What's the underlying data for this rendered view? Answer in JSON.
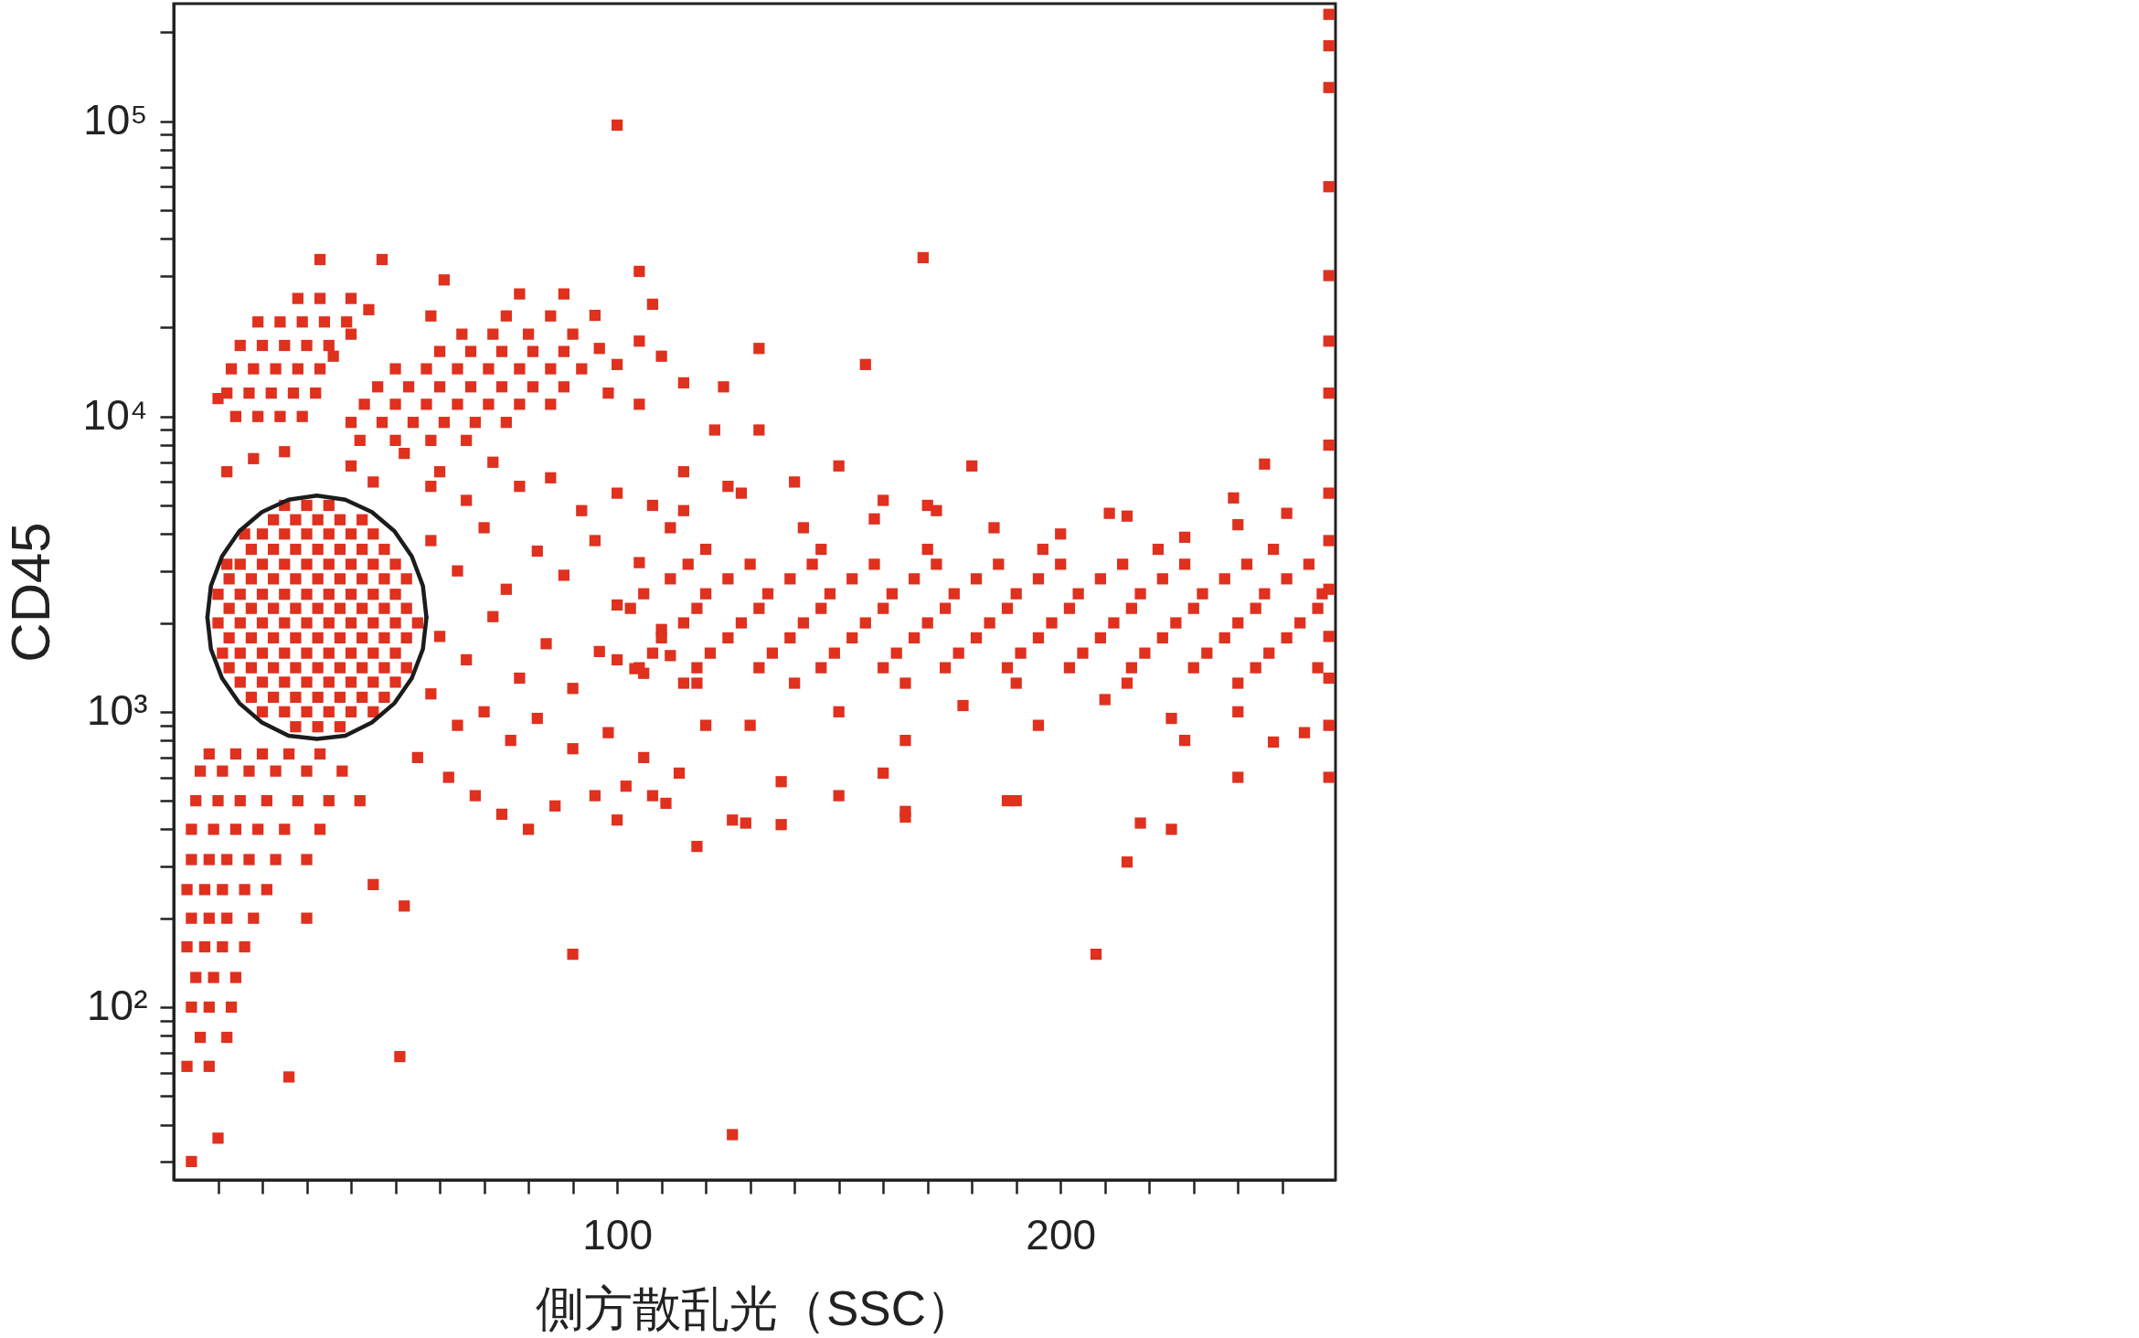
{
  "chart_data": {
    "type": "scatter",
    "xlabel": "側方散乱光（SSC）",
    "ylabel": "CD45",
    "log": "y",
    "marker": "square",
    "xlim": [
      0,
      262
    ],
    "ylim": [
      26,
      250000
    ],
    "xticks": [
      {
        "value": 10,
        "label": null
      },
      {
        "value": 20,
        "label": null
      },
      {
        "value": 30,
        "label": null
      },
      {
        "value": 40,
        "label": null
      },
      {
        "value": 50,
        "label": null
      },
      {
        "value": 60,
        "label": null
      },
      {
        "value": 70,
        "label": null
      },
      {
        "value": 80,
        "label": null
      },
      {
        "value": 90,
        "label": null
      },
      100,
      {
        "value": 110,
        "label": null
      },
      {
        "value": 120,
        "label": null
      },
      {
        "value": 130,
        "label": null
      },
      {
        "value": 140,
        "label": null
      },
      {
        "value": 150,
        "label": null
      },
      {
        "value": 160,
        "label": null
      },
      {
        "value": 170,
        "label": null
      },
      {
        "value": 180,
        "label": null
      },
      {
        "value": 190,
        "label": null
      },
      200,
      {
        "value": 210,
        "label": null
      },
      {
        "value": 220,
        "label": null
      },
      {
        "value": 230,
        "label": null
      },
      {
        "value": 240,
        "label": null
      },
      {
        "value": 250,
        "label": null
      }
    ],
    "yticks": [
      {
        "value": 30,
        "label": null
      },
      {
        "value": 40,
        "label": null
      },
      {
        "value": 50,
        "label": null
      },
      {
        "value": 60,
        "label": null
      },
      {
        "value": 70,
        "label": null
      },
      {
        "value": 80,
        "label": null
      },
      {
        "value": 90,
        "label": null
      },
      {
        "value": 100,
        "label": "10²"
      },
      {
        "value": 200,
        "label": null
      },
      {
        "value": 300,
        "label": null
      },
      {
        "value": 400,
        "label": null
      },
      {
        "value": 500,
        "label": null
      },
      {
        "value": 600,
        "label": null
      },
      {
        "value": 700,
        "label": null
      },
      {
        "value": 800,
        "label": null
      },
      {
        "value": 900,
        "label": null
      },
      {
        "value": 1000,
        "label": "10³"
      },
      {
        "value": 2000,
        "label": null
      },
      {
        "value": 3000,
        "label": null
      },
      {
        "value": 4000,
        "label": null
      },
      {
        "value": 5000,
        "label": null
      },
      {
        "value": 6000,
        "label": null
      },
      {
        "value": 7000,
        "label": null
      },
      {
        "value": 8000,
        "label": null
      },
      {
        "value": 9000,
        "label": null
      },
      {
        "value": 10000,
        "label": "10⁴"
      },
      {
        "value": 20000,
        "label": null
      },
      {
        "value": 30000,
        "label": null
      },
      {
        "value": 40000,
        "label": null
      },
      {
        "value": 50000,
        "label": null
      },
      {
        "value": 60000,
        "label": null
      },
      {
        "value": 70000,
        "label": null
      },
      {
        "value": 80000,
        "label": null
      },
      {
        "value": 90000,
        "label": null
      },
      {
        "value": 100000,
        "label": "10⁵"
      },
      {
        "value": 200000,
        "label": null
      }
    ],
    "series": [
      {
        "color": "#e0301e",
        "x": [
          20,
          25,
          30,
          35,
          40,
          45,
          15,
          20,
          25,
          30,
          35,
          40,
          45,
          50,
          11,
          15,
          20,
          25,
          30,
          35,
          40,
          45,
          50,
          10,
          15,
          20,
          25,
          30,
          35,
          40,
          45,
          50,
          55,
          10,
          15,
          20,
          25,
          30,
          35,
          40,
          45,
          50,
          12,
          15,
          20,
          25,
          30,
          35,
          40,
          45,
          50,
          16,
          20,
          25,
          30,
          35,
          40,
          45,
          25,
          30,
          35,
          27.5,
          32.5,
          37.5,
          17.5,
          22.5,
          27.5,
          32.5,
          37.5,
          42.5,
          47.5,
          12.5,
          17.5,
          22.5,
          27.5,
          32.5,
          37.5,
          42.5,
          47.5,
          52.5,
          12.5,
          17.5,
          22.5,
          27.5,
          32.5,
          37.5,
          42.5,
          47.5,
          52.5,
          12.5,
          17.5,
          22.5,
          27.5,
          32.5,
          37.5,
          42.5,
          47.5,
          52.5,
          12.5,
          17.5,
          22.5,
          27.5,
          32.5,
          37.5,
          42.5,
          47.5,
          52.5,
          17.5,
          22.5,
          27.5,
          32.5,
          37.5,
          42.5,
          47.5,
          22.5,
          27.5,
          32.5,
          37.5,
          42.5,
          14,
          19,
          24,
          29,
          12,
          17,
          22,
          27,
          32,
          13,
          18,
          23,
          28,
          33,
          15,
          20,
          25,
          30,
          35,
          19,
          24,
          29,
          34,
          39,
          28,
          33,
          40,
          10,
          36,
          40,
          44,
          33,
          47,
          12,
          18,
          45,
          52,
          58,
          40,
          25,
          42,
          50,
          58,
          66,
          40,
          47,
          54,
          61,
          68,
          75,
          43,
          50,
          57,
          64,
          71,
          78,
          85,
          46,
          53,
          60,
          67,
          74,
          81,
          88,
          50,
          57,
          64,
          71,
          78,
          85,
          92,
          60,
          67,
          74,
          81,
          88,
          65,
          72,
          80,
          90,
          58,
          75,
          85,
          96,
          100,
          105,
          110,
          98,
          105,
          115,
          95,
          108,
          88,
          78,
          61,
          105,
          132,
          156,
          169,
          100,
          124,
          122,
          60,
          66,
          72,
          78,
          85,
          92,
          100,
          108,
          115,
          125,
          132,
          140,
          150,
          160,
          170,
          180,
          58,
          64,
          70,
          75,
          82,
          88,
          95,
          100,
          105,
          112,
          60,
          66,
          72,
          78,
          84,
          90,
          96,
          104,
          110,
          58,
          64,
          70,
          76,
          82,
          90,
          98,
          106,
          114,
          120,
          55,
          62,
          68,
          74,
          80,
          86,
          95,
          100,
          108,
          118,
          126,
          137,
          150,
          160,
          165,
          8,
          14,
          20,
          26,
          33,
          6,
          11,
          17,
          23,
          30,
          38,
          5,
          10,
          15,
          21,
          28,
          35,
          42,
          4,
          9,
          14,
          19,
          25,
          33,
          4,
          8,
          12,
          17,
          23,
          30,
          3,
          7,
          11,
          16,
          21,
          4,
          8,
          12,
          18,
          30,
          3,
          7,
          11,
          16,
          5,
          9,
          14,
          4,
          8,
          13,
          6,
          12,
          3,
          8,
          4,
          10,
          26,
          51,
          126,
          208,
          90,
          45,
          52,
          105,
          118,
          132,
          146,
          160,
          174,
          188,
          202,
          216,
          230,
          244,
          258,
          110,
          125,
          139,
          153,
          167,
          181,
          195,
          209,
          223,
          237,
          251,
          103,
          118,
          132,
          146,
          160,
          174,
          188,
          202,
          216,
          230,
          244,
          258,
          112,
          125,
          139,
          153,
          167,
          181,
          195,
          209,
          223,
          237,
          251,
          120,
          146,
          170,
          196,
          222,
          248,
          115,
          128,
          142,
          158,
          172,
          185,
          200,
          215,
          228,
          240,
          246,
          239,
          251,
          211,
          130,
          150,
          165,
          178,
          195,
          210,
          225,
          240,
          255,
          165,
          188,
          190,
          215,
          218,
          225,
          228,
          240,
          248,
          137,
          129,
          111,
          102,
          260.5,
          260.5,
          260.5,
          260.5,
          260.5,
          260.5,
          260.5,
          260.5,
          260.5,
          260.5,
          260.5,
          260.5,
          260.5,
          260.5,
          260.5,
          100,
          106,
          112,
          118,
          108,
          121,
          135,
          149,
          163,
          177,
          191,
          205,
          219,
          233,
          247,
          115,
          128,
          142,
          156,
          170,
          184,
          198,
          212,
          226,
          240,
          254,
          106,
          120,
          134,
          148,
          162,
          176,
          190,
          204,
          218,
          232,
          246,
          259,
          116,
          130,
          144,
          158,
          172,
          186,
          200,
          214,
          228,
          242,
          256,
          115,
          140,
          165,
          190,
          215,
          240
        ],
        "values": [
          1000,
          1000,
          1000,
          1000,
          1000,
          1000,
          1260,
          1260,
          1260,
          1260,
          1260,
          1260,
          1260,
          1260,
          1580,
          1580,
          1580,
          1580,
          1580,
          1580,
          1580,
          1580,
          1580,
          2000,
          2000,
          2000,
          2000,
          2000,
          2000,
          2000,
          2000,
          2000,
          2000,
          2500,
          2500,
          2500,
          2500,
          2500,
          2500,
          2500,
          2500,
          2500,
          3160,
          3160,
          3160,
          3160,
          3160,
          3160,
          3160,
          3160,
          3160,
          4000,
          4000,
          4000,
          4000,
          4000,
          4000,
          4000,
          5000,
          5000,
          5000,
          890,
          890,
          890,
          1120,
          1120,
          1120,
          1120,
          1120,
          1120,
          1120,
          1410,
          1410,
          1410,
          1410,
          1410,
          1410,
          1410,
          1410,
          1410,
          1780,
          1780,
          1780,
          1780,
          1780,
          1780,
          1780,
          1780,
          1780,
          2240,
          2240,
          2240,
          2240,
          2240,
          2240,
          2240,
          2240,
          2240,
          2820,
          2820,
          2820,
          2820,
          2820,
          2820,
          2820,
          2820,
          2820,
          3550,
          3550,
          3550,
          3550,
          3550,
          3550,
          3550,
          4470,
          4470,
          4470,
          4470,
          4470,
          10000,
          10000,
          10000,
          10000,
          12000,
          12000,
          12000,
          12000,
          12000,
          14500,
          14500,
          14500,
          14500,
          14500,
          17400,
          17400,
          17400,
          17400,
          17400,
          20900,
          20900,
          20900,
          20900,
          20900,
          25100,
          25100,
          25100,
          11500,
          16000,
          19000,
          23000,
          34000,
          34000,
          6500,
          7200,
          6000,
          7500,
          5800,
          6800,
          7600,
          8300,
          8300,
          8300,
          8300,
          9550,
          9550,
          9550,
          9550,
          9550,
          9550,
          11000,
          11000,
          11000,
          11000,
          11000,
          11000,
          11000,
          12600,
          12600,
          12600,
          12600,
          12600,
          12600,
          12600,
          14500,
          14500,
          14500,
          14500,
          14500,
          14500,
          14500,
          16600,
          16600,
          16600,
          16600,
          16600,
          19000,
          19000,
          19000,
          19000,
          21900,
          21900,
          21900,
          17000,
          15000,
          18000,
          16000,
          12000,
          11000,
          13000,
          22000,
          24000,
          26000,
          26000,
          29000,
          31000,
          17000,
          15000,
          34500,
          97000,
          12600,
          9000,
          6500,
          5200,
          7000,
          5800,
          6200,
          4800,
          5500,
          5000,
          6500,
          5800,
          9000,
          6000,
          6800,
          5200,
          5000,
          6800,
          3800,
          3000,
          4200,
          2600,
          3500,
          2900,
          3800,
          2300,
          3200,
          4200,
          1800,
          1500,
          2100,
          1300,
          1700,
          1200,
          1600,
          1400,
          1900,
          1150,
          900,
          1000,
          800,
          950,
          750,
          850,
          700,
          620,
          900,
          700,
          600,
          520,
          450,
          400,
          480,
          520,
          430,
          520,
          350,
          430,
          580,
          520,
          620,
          460,
          720,
          720,
          720,
          720,
          720,
          630,
          630,
          630,
          630,
          630,
          630,
          500,
          500,
          500,
          500,
          500,
          500,
          500,
          400,
          400,
          400,
          400,
          400,
          400,
          316,
          316,
          316,
          316,
          316,
          316,
          250,
          250,
          250,
          250,
          250,
          200,
          200,
          200,
          200,
          200,
          160,
          160,
          160,
          160,
          126,
          126,
          126,
          100,
          100,
          100,
          79,
          79,
          63,
          63,
          30,
          36,
          58,
          68,
          37,
          151,
          151,
          260,
          220,
          1410,
          1410,
          1410,
          1410,
          1410,
          1410,
          1410,
          1410,
          1410,
          1410,
          1410,
          1410,
          1780,
          1780,
          1780,
          1780,
          1780,
          1780,
          1780,
          1780,
          1780,
          1780,
          1780,
          2240,
          2240,
          2240,
          2240,
          2240,
          2240,
          2240,
          2240,
          2240,
          2240,
          2240,
          2240,
          2820,
          2820,
          2820,
          2820,
          2820,
          2820,
          2820,
          2820,
          2820,
          2820,
          2820,
          3550,
          3550,
          3550,
          3550,
          3550,
          3550,
          4800,
          5500,
          4200,
          4500,
          4800,
          4200,
          4000,
          4600,
          3900,
          4300,
          6900,
          5300,
          4700,
          4700,
          900,
          1000,
          800,
          1050,
          900,
          1100,
          950,
          1000,
          850,
          440,
          500,
          500,
          310,
          420,
          400,
          800,
          600,
          790,
          415,
          420,
          490,
          560,
          230000,
          180000,
          130000,
          60000,
          30000,
          18000,
          12000,
          8000,
          5500,
          3800,
          2600,
          1800,
          1300,
          900,
          600,
          1500,
          1350,
          1550,
          1250,
          1580,
          1580,
          1580,
          1580,
          1580,
          1580,
          1580,
          1580,
          1580,
          1580,
          1580,
          2000,
          2000,
          2000,
          2000,
          2000,
          2000,
          2000,
          2000,
          2000,
          2000,
          2000,
          2510,
          2510,
          2510,
          2510,
          2510,
          2510,
          2510,
          2510,
          2510,
          2510,
          2510,
          2510,
          3160,
          3160,
          3160,
          3160,
          3160,
          3160,
          3160,
          3160,
          3160,
          3160,
          3160,
          1250,
          1250,
          1250,
          1250,
          1250,
          1250
        ]
      },
      {
        "type": "line",
        "color": "#1c1c1c",
        "marker": "none",
        "x": [
          7.6,
          8.4,
          10.9,
          14.8,
          19.9,
          25.9,
          32.3,
          38.7,
          44.7,
          49.8,
          53.7,
          56.2,
          57
        ],
        "values": [
          2090,
          2670,
          3360,
          4090,
          4750,
          5230,
          5400,
          5230,
          4750,
          4090,
          3360,
          2670,
          2090
        ]
      },
      {
        "type": "line",
        "color": "#1c1c1c",
        "marker": "none",
        "x": [
          7.6,
          8.4,
          10.9,
          14.8,
          19.9,
          25.9,
          32.3,
          38.7,
          44.7,
          49.8,
          53.7,
          56.2,
          57
        ],
        "values": [
          2090,
          1630,
          1300,
          1070,
          920,
          830,
          810,
          830,
          920,
          1070,
          1300,
          1630,
          2090
        ]
      }
    ]
  }
}
